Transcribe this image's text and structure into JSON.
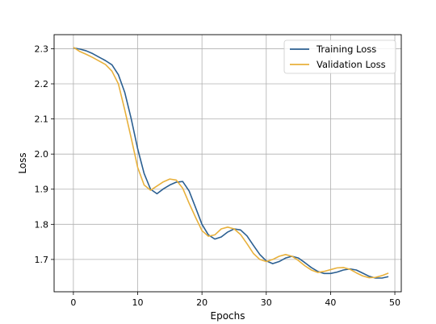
{
  "chart_data": {
    "type": "line",
    "xlabel": "Epochs",
    "ylabel": "Loss",
    "xlim": [
      -3,
      51
    ],
    "ylim": [
      1.608,
      2.34
    ],
    "xticks": [
      0,
      10,
      20,
      30,
      40,
      50
    ],
    "yticks": [
      1.7,
      1.8,
      1.9,
      2.0,
      2.1,
      2.2,
      2.3
    ],
    "ytick_labels": [
      "1.7",
      "1.8",
      "1.9",
      "2.0",
      "2.1",
      "2.2",
      "2.3"
    ],
    "grid": true,
    "legend_position": "top-right",
    "x": [
      0,
      1,
      2,
      3,
      4,
      5,
      6,
      7,
      8,
      9,
      10,
      11,
      12,
      13,
      14,
      15,
      16,
      17,
      18,
      19,
      20,
      21,
      22,
      23,
      24,
      25,
      26,
      27,
      28,
      29,
      30,
      31,
      32,
      33,
      34,
      35,
      36,
      37,
      38,
      39,
      40,
      41,
      42,
      43,
      44,
      45,
      46,
      47,
      48,
      49
    ],
    "series": [
      {
        "name": "Training Loss",
        "color": "#2b5f91",
        "values": [
          2.302,
          2.299,
          2.294,
          2.286,
          2.276,
          2.266,
          2.254,
          2.226,
          2.175,
          2.1,
          2.015,
          1.945,
          1.9,
          1.887,
          1.901,
          1.912,
          1.92,
          1.922,
          1.895,
          1.848,
          1.8,
          1.77,
          1.758,
          1.764,
          1.778,
          1.787,
          1.784,
          1.767,
          1.74,
          1.714,
          1.696,
          1.688,
          1.694,
          1.704,
          1.709,
          1.704,
          1.691,
          1.677,
          1.666,
          1.66,
          1.66,
          1.664,
          1.67,
          1.673,
          1.67,
          1.661,
          1.652,
          1.647,
          1.647,
          1.651
        ]
      },
      {
        "name": "Validation Loss",
        "color": "#e8b13c",
        "values": [
          2.304,
          2.292,
          2.284,
          2.275,
          2.265,
          2.255,
          2.236,
          2.2,
          2.125,
          2.045,
          1.962,
          1.912,
          1.897,
          1.909,
          1.921,
          1.929,
          1.926,
          1.903,
          1.86,
          1.82,
          1.782,
          1.766,
          1.77,
          1.787,
          1.792,
          1.787,
          1.771,
          1.745,
          1.717,
          1.7,
          1.694,
          1.7,
          1.709,
          1.714,
          1.709,
          1.697,
          1.682,
          1.67,
          1.663,
          1.666,
          1.671,
          1.676,
          1.677,
          1.672,
          1.662,
          1.653,
          1.648,
          1.649,
          1.654,
          1.661
        ]
      }
    ]
  }
}
